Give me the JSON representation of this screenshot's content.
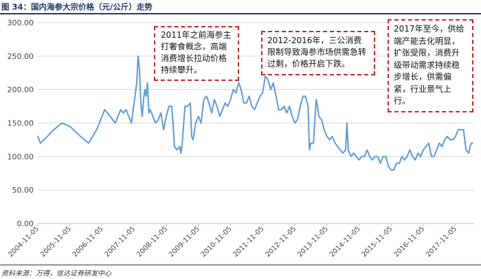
{
  "header": {
    "title": "图 34：国内海参大宗价格（元/公斤）走势"
  },
  "footer": {
    "source": "资料来源：万得，信达证券研发中心"
  },
  "colors": {
    "line": "#5b9bd5",
    "annotation_border": "#c0272d",
    "title": "#1f3a64"
  },
  "annotations": [
    {
      "text": "2011年之前海参主打奢食概念，高端消费增长拉动价格持续攀升。"
    },
    {
      "text": "2012-2016年，三公消费限制导致海参市场供需急转过剩，价格开启下跌。"
    },
    {
      "text": "2017年至今，供给端产能去化明显，扩张受限，消费升级带动需求持续稳步增长，供需偏紧，行业景气上行。"
    }
  ],
  "chart_data": {
    "type": "line",
    "title": "国内海参大宗价格（元/公斤）走势",
    "ylim": [
      0,
      300
    ],
    "yticks": [
      "0.00",
      "50.00",
      "100.00",
      "150.00",
      "200.00",
      "250.00",
      "300.00"
    ],
    "xlim": [
      "2004-11-05",
      "2018-06-05"
    ],
    "xticks": [
      "2004-11-05",
      "2005-11-05",
      "2006-11-05",
      "2007-11-05",
      "2008-11-05",
      "2009-11-05",
      "2010-11-05",
      "2011-11-05",
      "2012-11-05",
      "2013-11-05",
      "2014-11-05",
      "2015-11-05",
      "2016-11-05",
      "2017-11-05"
    ],
    "grid": "horizontal",
    "series": [
      {
        "points": [
          [
            "2004-11-05",
            130
          ],
          [
            "2004-12-05",
            120
          ],
          [
            "2005-02-05",
            128
          ],
          [
            "2005-05-05",
            140
          ],
          [
            "2005-08-05",
            150
          ],
          [
            "2005-11-05",
            145
          ],
          [
            "2006-03-05",
            130
          ],
          [
            "2006-06-05",
            120
          ],
          [
            "2006-09-05",
            140
          ],
          [
            "2006-11-05",
            160
          ],
          [
            "2006-12-05",
            170
          ],
          [
            "2007-01-05",
            165
          ],
          [
            "2007-02-05",
            160
          ],
          [
            "2007-04-05",
            150
          ],
          [
            "2007-05-05",
            160
          ],
          [
            "2007-06-05",
            170
          ],
          [
            "2007-07-05",
            165
          ],
          [
            "2007-08-05",
            170
          ],
          [
            "2007-09-05",
            160
          ],
          [
            "2007-10-05",
            150
          ],
          [
            "2007-11-05",
            180
          ],
          [
            "2007-12-05",
            210
          ],
          [
            "2007-12-20",
            250
          ],
          [
            "2008-01-05",
            230
          ],
          [
            "2008-01-20",
            180
          ],
          [
            "2008-02-05",
            160
          ],
          [
            "2008-02-20",
            185
          ],
          [
            "2008-03-05",
            200
          ],
          [
            "2008-03-20",
            190
          ],
          [
            "2008-04-05",
            210
          ],
          [
            "2008-04-20",
            165
          ],
          [
            "2008-05-05",
            170
          ],
          [
            "2008-06-05",
            160
          ],
          [
            "2008-07-05",
            150
          ],
          [
            "2008-08-05",
            155
          ],
          [
            "2008-09-05",
            165
          ],
          [
            "2008-10-05",
            140
          ],
          [
            "2008-11-05",
            160
          ],
          [
            "2008-12-05",
            175
          ],
          [
            "2009-01-05",
            175
          ],
          [
            "2009-01-20",
            150
          ],
          [
            "2009-02-05",
            115
          ],
          [
            "2009-03-05",
            110
          ],
          [
            "2009-04-05",
            115
          ],
          [
            "2009-04-20",
            105
          ],
          [
            "2009-05-05",
            120
          ],
          [
            "2009-06-05",
            175
          ],
          [
            "2009-07-05",
            175
          ],
          [
            "2009-08-05",
            180
          ],
          [
            "2009-08-20",
            130
          ],
          [
            "2009-09-05",
            125
          ],
          [
            "2009-10-05",
            150
          ],
          [
            "2009-11-05",
            160
          ],
          [
            "2009-12-05",
            150
          ],
          [
            "2010-01-05",
            185
          ],
          [
            "2010-02-05",
            190
          ],
          [
            "2010-03-05",
            180
          ],
          [
            "2010-04-05",
            165
          ],
          [
            "2010-05-05",
            185
          ],
          [
            "2010-06-05",
            175
          ],
          [
            "2010-07-05",
            160
          ],
          [
            "2010-08-05",
            170
          ],
          [
            "2010-09-05",
            180
          ],
          [
            "2010-10-05",
            175
          ],
          [
            "2010-11-05",
            185
          ],
          [
            "2010-12-05",
            200
          ],
          [
            "2011-01-05",
            195
          ],
          [
            "2011-02-05",
            210
          ],
          [
            "2011-03-05",
            200
          ],
          [
            "2011-04-05",
            180
          ],
          [
            "2011-05-05",
            180
          ],
          [
            "2011-06-05",
            190
          ],
          [
            "2011-07-05",
            175
          ],
          [
            "2011-08-05",
            170
          ],
          [
            "2011-09-05",
            180
          ],
          [
            "2011-10-05",
            190
          ],
          [
            "2011-11-05",
            195
          ],
          [
            "2011-12-05",
            220
          ],
          [
            "2012-01-05",
            215
          ],
          [
            "2012-02-05",
            200
          ],
          [
            "2012-03-05",
            210
          ],
          [
            "2012-04-05",
            190
          ],
          [
            "2012-05-05",
            170
          ],
          [
            "2012-06-05",
            170
          ],
          [
            "2012-07-05",
            175
          ],
          [
            "2012-08-05",
            165
          ],
          [
            "2012-09-05",
            175
          ],
          [
            "2012-10-05",
            160
          ],
          [
            "2012-11-05",
            150
          ],
          [
            "2012-12-05",
            155
          ],
          [
            "2013-01-05",
            175
          ],
          [
            "2013-02-05",
            190
          ],
          [
            "2013-03-05",
            190
          ],
          [
            "2013-04-05",
            175
          ],
          [
            "2013-04-20",
            110
          ],
          [
            "2013-05-05",
            120
          ],
          [
            "2013-06-05",
            120
          ],
          [
            "2013-07-05",
            185
          ],
          [
            "2013-07-20",
            175
          ],
          [
            "2013-08-05",
            160
          ],
          [
            "2013-09-05",
            155
          ],
          [
            "2013-10-05",
            140
          ],
          [
            "2013-11-05",
            130
          ],
          [
            "2013-12-05",
            125
          ],
          [
            "2014-01-05",
            130
          ],
          [
            "2014-02-05",
            120
          ],
          [
            "2014-03-05",
            115
          ],
          [
            "2014-04-05",
            110
          ],
          [
            "2014-05-05",
            105
          ],
          [
            "2014-06-05",
            110
          ],
          [
            "2014-06-20",
            150
          ],
          [
            "2014-07-05",
            110
          ],
          [
            "2014-08-05",
            100
          ],
          [
            "2014-09-05",
            105
          ],
          [
            "2014-10-05",
            100
          ],
          [
            "2014-11-05",
            95
          ],
          [
            "2014-12-05",
            100
          ],
          [
            "2015-01-05",
            100
          ],
          [
            "2015-02-05",
            110
          ],
          [
            "2015-03-05",
            100
          ],
          [
            "2015-04-05",
            95
          ],
          [
            "2015-05-05",
            100
          ],
          [
            "2015-06-05",
            100
          ],
          [
            "2015-07-05",
            90
          ],
          [
            "2015-08-05",
            100
          ],
          [
            "2015-09-05",
            100
          ],
          [
            "2015-10-05",
            85
          ],
          [
            "2015-11-05",
            80
          ],
          [
            "2015-12-05",
            80
          ],
          [
            "2016-01-05",
            90
          ],
          [
            "2016-02-05",
            90
          ],
          [
            "2016-03-05",
            100
          ],
          [
            "2016-04-05",
            95
          ],
          [
            "2016-05-05",
            100
          ],
          [
            "2016-06-05",
            110
          ],
          [
            "2016-07-05",
            100
          ],
          [
            "2016-08-05",
            95
          ],
          [
            "2016-09-05",
            105
          ],
          [
            "2016-10-05",
            100
          ],
          [
            "2016-11-05",
            110
          ],
          [
            "2016-12-05",
            115
          ],
          [
            "2017-01-05",
            120
          ],
          [
            "2017-02-05",
            100
          ],
          [
            "2017-03-05",
            100
          ],
          [
            "2017-04-05",
            110
          ],
          [
            "2017-05-05",
            120
          ],
          [
            "2017-06-05",
            115
          ],
          [
            "2017-07-05",
            125
          ],
          [
            "2017-08-05",
            130
          ],
          [
            "2017-09-05",
            125
          ],
          [
            "2017-10-05",
            125
          ],
          [
            "2017-11-05",
            130
          ],
          [
            "2017-12-05",
            140
          ],
          [
            "2018-01-05",
            140
          ],
          [
            "2018-02-05",
            140
          ],
          [
            "2018-03-05",
            110
          ],
          [
            "2018-04-05",
            105
          ],
          [
            "2018-04-20",
            115
          ],
          [
            "2018-05-05",
            120
          ],
          [
            "2018-05-20",
            120
          ]
        ]
      }
    ]
  }
}
